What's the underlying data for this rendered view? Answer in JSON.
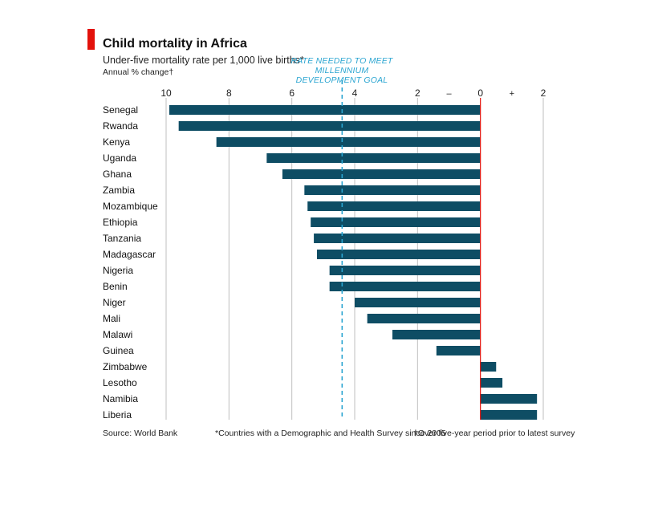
{
  "header": {
    "title": "Child mortality in Africa",
    "subtitle": "Under-five mortality rate per 1,000 live births*",
    "unit_label": "Annual % change†",
    "goal_line1": "RATE NEEDED TO MEET",
    "goal_line2": "MILLENNIUM DEVELOPMENT GOAL"
  },
  "footer": {
    "source": "Source: World Bank",
    "footnote1": "*Countries with a Demographic and Health Survey since 2005",
    "footnote2": "†Over five-year period prior to latest survey"
  },
  "colors": {
    "bar": "#0e4d64",
    "accent": "#e3120b",
    "goal_line": "#2aa5d1",
    "grid": "#bfbfbf",
    "zero_line": "#e3120b"
  },
  "chart_data": {
    "type": "bar",
    "orientation": "horizontal",
    "title": "Child mortality in Africa",
    "subtitle": "Under-five mortality rate per 1,000 live births*",
    "xlabel": "Annual % change†",
    "xlim": [
      -10,
      2
    ],
    "x_tick_values": [
      -10,
      -8,
      -6,
      -4,
      -2,
      0,
      2
    ],
    "x_tick_labels": [
      "10",
      "8",
      "6",
      "4",
      "2",
      "0",
      "2"
    ],
    "sign_labels": [
      {
        "value": -1,
        "text": "–"
      },
      {
        "value": 1,
        "text": "+"
      }
    ],
    "reference_line": {
      "value": -4.4,
      "label": "RATE NEEDED TO MEET MILLENNIUM DEVELOPMENT GOAL"
    },
    "grid": true,
    "categories": [
      "Senegal",
      "Rwanda",
      "Kenya",
      "Uganda",
      "Ghana",
      "Zambia",
      "Mozambique",
      "Ethiopia",
      "Tanzania",
      "Madagascar",
      "Nigeria",
      "Benin",
      "Niger",
      "Mali",
      "Malawi",
      "Guinea",
      "Zimbabwe",
      "Lesotho",
      "Namibia",
      "Liberia"
    ],
    "values": [
      -9.9,
      -9.6,
      -8.4,
      -6.8,
      -6.3,
      -5.6,
      -5.5,
      -5.4,
      -5.3,
      -5.2,
      -4.8,
      -4.8,
      -4.0,
      -3.6,
      -2.8,
      -1.4,
      0.5,
      0.7,
      1.8,
      1.8
    ]
  }
}
